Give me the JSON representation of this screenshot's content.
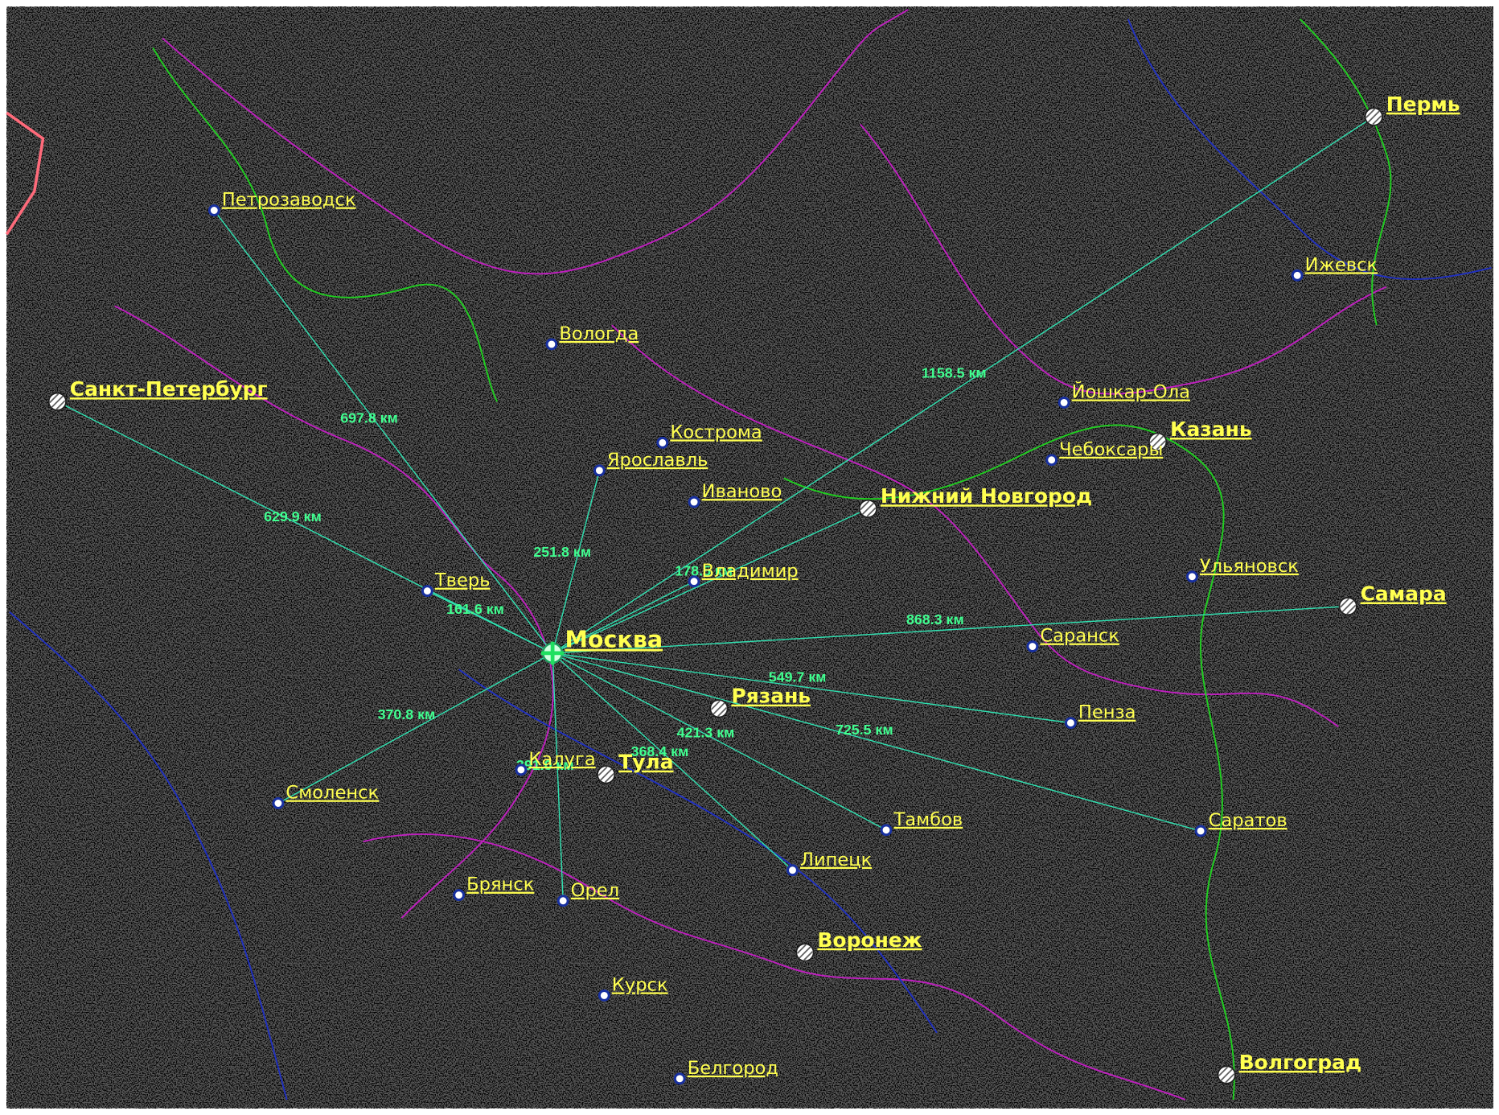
{
  "cities": [
    {
      "name": "Москва"
    },
    {
      "name": "Санкт-Петербург",
      "distance": "629.9 км"
    },
    {
      "name": "Петрозаводск",
      "distance": "697.8 км"
    },
    {
      "name": "Вологда"
    },
    {
      "name": "Кострома"
    },
    {
      "name": "Ярославль",
      "distance": "251.8 км"
    },
    {
      "name": "Иваново"
    },
    {
      "name": "Нижний Новгород"
    },
    {
      "name": "Владимир",
      "distance": "178.5 км"
    },
    {
      "name": "Тверь",
      "distance": "161.6 км"
    },
    {
      "name": "Пермь",
      "distance": "1158.5 км"
    },
    {
      "name": "Ижевск"
    },
    {
      "name": "Йошкар-Ола"
    },
    {
      "name": "Казань"
    },
    {
      "name": "Чебоксары"
    },
    {
      "name": "Ульяновск"
    },
    {
      "name": "Самара",
      "distance": "868.3 км"
    },
    {
      "name": "Саранск"
    },
    {
      "name": "Рязань"
    },
    {
      "name": "Пенза",
      "distance": "549.7 км"
    },
    {
      "name": "Калуга"
    },
    {
      "name": "Тула"
    },
    {
      "name": "Смоленск",
      "distance": "370.8 км"
    },
    {
      "name": "Тамбов",
      "distance": "421.3 км"
    },
    {
      "name": "Саратов",
      "distance": "725.5 км"
    },
    {
      "name": "Липецк",
      "distance": "368.4 км"
    },
    {
      "name": "Брянск"
    },
    {
      "name": "Орел",
      "distance": "391.0 км"
    },
    {
      "name": "Воронеж"
    },
    {
      "name": "Курск"
    },
    {
      "name": "Белгород"
    },
    {
      "name": "Волгоград"
    }
  ]
}
